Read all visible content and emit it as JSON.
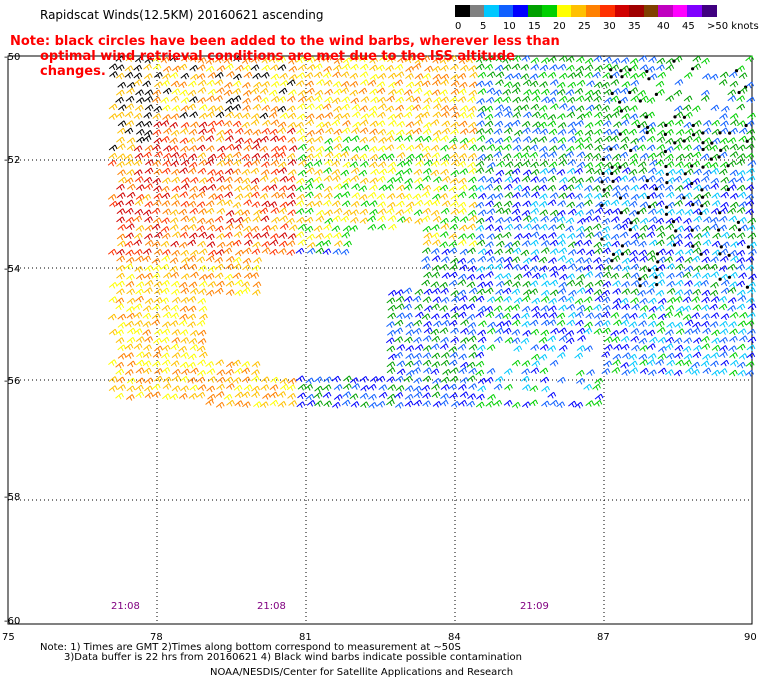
{
  "title": "Rapidscat Winds(12.5KM) 20160621 ascending",
  "note": {
    "line1": "Note: black circles have been added to the wind barbs, wherever less than",
    "line2": "optimal wind retrieval conditions are met due to the ISS altitude changes."
  },
  "legend": {
    "colors": [
      "#000000",
      "#808080",
      "#00c8ff",
      "#1060ff",
      "#0000ff",
      "#00a000",
      "#00d000",
      "#ffff00",
      "#ffc000",
      "#ff8000",
      "#ff3000",
      "#d00000",
      "#a00000",
      "#804000",
      "#c000c0",
      "#ff00ff",
      "#8000ff",
      "#400080"
    ],
    "labels": [
      "0",
      "5",
      "10",
      "15",
      "20",
      "25",
      "30",
      "35",
      "40",
      "45",
      ">50 knots"
    ]
  },
  "axes": {
    "y_ticks": [
      "-50",
      "-52",
      "-54",
      "-56",
      "-58",
      "-60"
    ],
    "x_ticks": [
      "75",
      "78",
      "81",
      "84",
      "87",
      "90"
    ]
  },
  "pass_times": [
    "21:08",
    "21:08",
    "21:09"
  ],
  "footnotes": {
    "line1": "Note: 1) Times are GMT 2)Times along bottom correspond to measurement at ~50S",
    "line2": "3)Data buffer is 22 hrs from 20160621 4) Black wind barbs indicate possible contamination"
  },
  "credit": "NOAA/NESDIS/Center for Satellite Applications and Research"
}
